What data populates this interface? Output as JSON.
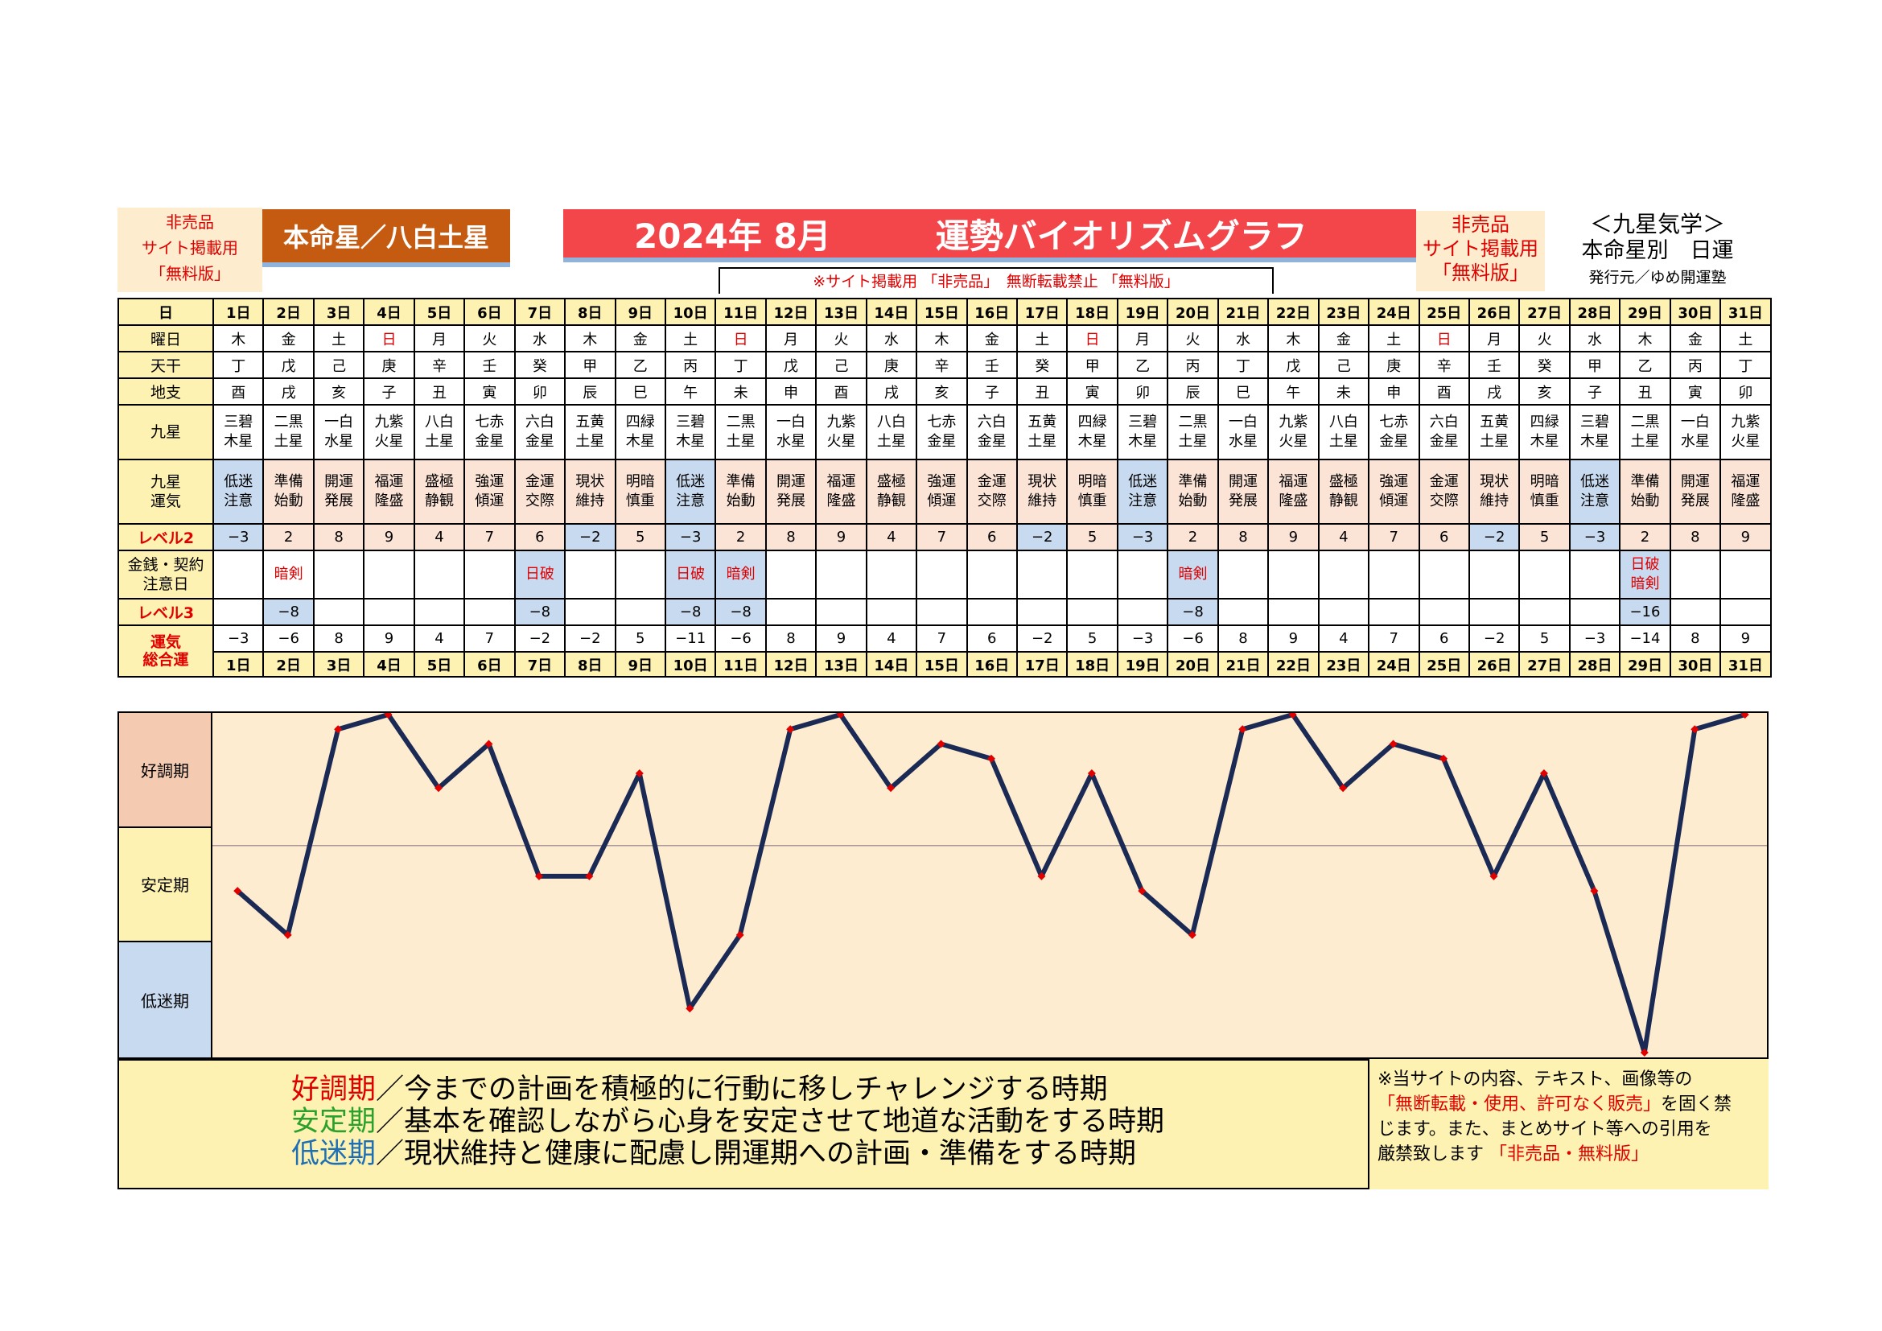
{
  "header": {
    "nonsale_left": [
      "非売品",
      "サイト掲載用",
      "「無料版」"
    ],
    "honmei": "本命星／八白土星",
    "title_year": "2024年 8月",
    "title_main": "運勢バイオリズムグラフ",
    "notice": "※サイト掲載用 「非売品」　無断転載禁止 「無料版」",
    "nonsale_right": [
      "非売品",
      "サイト掲載用",
      "「無料版」"
    ],
    "kyusei": "＜九星気学＞",
    "kyusei_sub": "本命星別　日運",
    "publisher": "発行元／ゆめ開運塾"
  },
  "row_labels": {
    "day": "日",
    "weekday": "曜日",
    "tenkan": "天干",
    "chishi": "地支",
    "kyusei": "九星",
    "unki": [
      "九星",
      "運気"
    ],
    "level2": "レベル2",
    "kinsen": [
      "金銭・契約",
      "注意日"
    ],
    "level3": "レベル3",
    "sogo": [
      "運気",
      "総合運"
    ]
  },
  "days": [
    "1日",
    "2日",
    "3日",
    "4日",
    "5日",
    "6日",
    "7日",
    "8日",
    "9日",
    "10日",
    "11日",
    "12日",
    "13日",
    "14日",
    "15日",
    "16日",
    "17日",
    "18日",
    "19日",
    "20日",
    "21日",
    "22日",
    "23日",
    "24日",
    "25日",
    "26日",
    "27日",
    "28日",
    "29日",
    "30日",
    "31日"
  ],
  "weekdays": [
    "木",
    "金",
    "土",
    "日",
    "月",
    "火",
    "水",
    "木",
    "金",
    "土",
    "日",
    "月",
    "火",
    "水",
    "木",
    "金",
    "土",
    "日",
    "月",
    "火",
    "水",
    "木",
    "金",
    "土",
    "日",
    "月",
    "火",
    "水",
    "木",
    "金",
    "土"
  ],
  "tenkan": [
    "丁",
    "戊",
    "己",
    "庚",
    "辛",
    "壬",
    "癸",
    "甲",
    "乙",
    "丙",
    "丁",
    "戊",
    "己",
    "庚",
    "辛",
    "壬",
    "癸",
    "甲",
    "乙",
    "丙",
    "丁",
    "戊",
    "己",
    "庚",
    "辛",
    "壬",
    "癸",
    "甲",
    "乙",
    "丙",
    "丁"
  ],
  "chishi": [
    "酉",
    "戌",
    "亥",
    "子",
    "丑",
    "寅",
    "卯",
    "辰",
    "巳",
    "午",
    "未",
    "申",
    "酉",
    "戌",
    "亥",
    "子",
    "丑",
    "寅",
    "卯",
    "辰",
    "巳",
    "午",
    "未",
    "申",
    "酉",
    "戌",
    "亥",
    "子",
    "丑",
    "寅",
    "卯"
  ],
  "kyusei_names": [
    [
      "三碧",
      "木星"
    ],
    [
      "二黒",
      "土星"
    ],
    [
      "一白",
      "水星"
    ],
    [
      "九紫",
      "火星"
    ],
    [
      "八白",
      "土星"
    ],
    [
      "七赤",
      "金星"
    ],
    [
      "六白",
      "金星"
    ],
    [
      "五黄",
      "土星"
    ],
    [
      "四緑",
      "木星"
    ],
    [
      "三碧",
      "木星"
    ],
    [
      "二黒",
      "土星"
    ],
    [
      "一白",
      "水星"
    ],
    [
      "九紫",
      "火星"
    ],
    [
      "八白",
      "土星"
    ],
    [
      "七赤",
      "金星"
    ],
    [
      "六白",
      "金星"
    ],
    [
      "五黄",
      "土星"
    ],
    [
      "四緑",
      "木星"
    ],
    [
      "三碧",
      "木星"
    ],
    [
      "二黒",
      "土星"
    ],
    [
      "一白",
      "水星"
    ],
    [
      "九紫",
      "火星"
    ],
    [
      "八白",
      "土星"
    ],
    [
      "七赤",
      "金星"
    ],
    [
      "六白",
      "金星"
    ],
    [
      "五黄",
      "土星"
    ],
    [
      "四緑",
      "木星"
    ],
    [
      "三碧",
      "木星"
    ],
    [
      "二黒",
      "土星"
    ],
    [
      "一白",
      "水星"
    ],
    [
      "九紫",
      "火星"
    ]
  ],
  "unki": [
    [
      "低迷",
      "注意"
    ],
    [
      "準備",
      "始動"
    ],
    [
      "開運",
      "発展"
    ],
    [
      "福運",
      "隆盛"
    ],
    [
      "盛極",
      "静観"
    ],
    [
      "強運",
      "傾運"
    ],
    [
      "金運",
      "交際"
    ],
    [
      "現状",
      "維持"
    ],
    [
      "明暗",
      "慎重"
    ],
    [
      "低迷",
      "注意"
    ],
    [
      "準備",
      "始動"
    ],
    [
      "開運",
      "発展"
    ],
    [
      "福運",
      "隆盛"
    ],
    [
      "盛極",
      "静観"
    ],
    [
      "強運",
      "傾運"
    ],
    [
      "金運",
      "交際"
    ],
    [
      "現状",
      "維持"
    ],
    [
      "明暗",
      "慎重"
    ],
    [
      "低迷",
      "注意"
    ],
    [
      "準備",
      "始動"
    ],
    [
      "開運",
      "発展"
    ],
    [
      "福運",
      "隆盛"
    ],
    [
      "盛極",
      "静観"
    ],
    [
      "強運",
      "傾運"
    ],
    [
      "金運",
      "交際"
    ],
    [
      "現状",
      "維持"
    ],
    [
      "明暗",
      "慎重"
    ],
    [
      "低迷",
      "注意"
    ],
    [
      "準備",
      "始動"
    ],
    [
      "開運",
      "発展"
    ],
    [
      "福運",
      "隆盛"
    ]
  ],
  "level2": [
    "−3",
    "2",
    "8",
    "9",
    "4",
    "7",
    "6",
    "−2",
    "5",
    "−3",
    "2",
    "8",
    "9",
    "4",
    "7",
    "6",
    "−2",
    "5",
    "−3",
    "2",
    "8",
    "9",
    "4",
    "7",
    "6",
    "−2",
    "5",
    "−3",
    "2",
    "8",
    "9"
  ],
  "kinsen": [
    [],
    [
      "暗剣"
    ],
    [],
    [],
    [],
    [],
    [
      "日破"
    ],
    [],
    [],
    [
      "日破"
    ],
    [
      "暗剣"
    ],
    [],
    [],
    [],
    [],
    [],
    [],
    [],
    [],
    [
      "暗剣"
    ],
    [],
    [],
    [],
    [],
    [],
    [],
    [],
    [],
    [
      "日破",
      "暗剣"
    ],
    [],
    []
  ],
  "level3": [
    "",
    "−8",
    "",
    "",
    "",
    "",
    "−8",
    "",
    "",
    "−8",
    "−8",
    "",
    "",
    "",
    "",
    "",
    "",
    "",
    "",
    "−8",
    "",
    "",
    "",
    "",
    "",
    "",
    "",
    "",
    "−16",
    "",
    ""
  ],
  "sogo": [
    "−3",
    "−6",
    "8",
    "9",
    "4",
    "7",
    "−2",
    "−2",
    "5",
    "−11",
    "−6",
    "8",
    "9",
    "4",
    "7",
    "6",
    "−2",
    "5",
    "−3",
    "−6",
    "8",
    "9",
    "4",
    "7",
    "6",
    "−2",
    "5",
    "−3",
    "−14",
    "8",
    "9"
  ],
  "zones": [
    "好調期",
    "安定期",
    "低迷期"
  ],
  "legend": {
    "l1_key": "好調期",
    "l1_text": "／今までの計画を積極的に行動に移しチャレンジする時期",
    "l2_key": "安定期",
    "l2_text": "／基本を確認しながら心身を安定させて地道な活動をする時期",
    "l3_key": "低迷期",
    "l3_text": "／現状維持と健康に配慮し開運期への計画・準備をする時期"
  },
  "copyright": {
    "line1": "※当サイトの内容、テキスト、画像等の",
    "line2_red": "「無断転載・使用、許可なく販売」",
    "line2_tail": "を固く禁",
    "line3": "じます。また、まとめサイト等への引用を",
    "line4": "厳禁致します ",
    "line4_red": "「非売品・無料版」"
  },
  "colors": {
    "line": "#1b2a55",
    "marker": "#e00000",
    "chart_bg": "#fdecd0",
    "zone_good": "#f4cbb0",
    "zone_stable": "#fdf2b1",
    "zone_low": "#c8daef",
    "title_bg": "#f2464b",
    "honmei_bg": "#c55a11"
  },
  "chart_data": {
    "type": "line",
    "x": [
      "1日",
      "2日",
      "3日",
      "4日",
      "5日",
      "6日",
      "7日",
      "8日",
      "9日",
      "10日",
      "11日",
      "12日",
      "13日",
      "14日",
      "15日",
      "16日",
      "17日",
      "18日",
      "19日",
      "20日",
      "21日",
      "22日",
      "23日",
      "24日",
      "25日",
      "26日",
      "27日",
      "28日",
      "29日",
      "30日",
      "31日"
    ],
    "series": [
      {
        "values": [
          -3,
          -6,
          8,
          9,
          4,
          7,
          -2,
          -2,
          5,
          -11,
          -6,
          8,
          9,
          4,
          7,
          6,
          -2,
          5,
          -3,
          -6,
          8,
          9,
          4,
          7,
          6,
          -2,
          5,
          -3,
          -14,
          8,
          9
        ]
      }
    ],
    "ylim": [
      -14,
      9
    ],
    "zones": [
      "好調期",
      "安定期",
      "低迷期"
    ],
    "grid": false
  }
}
